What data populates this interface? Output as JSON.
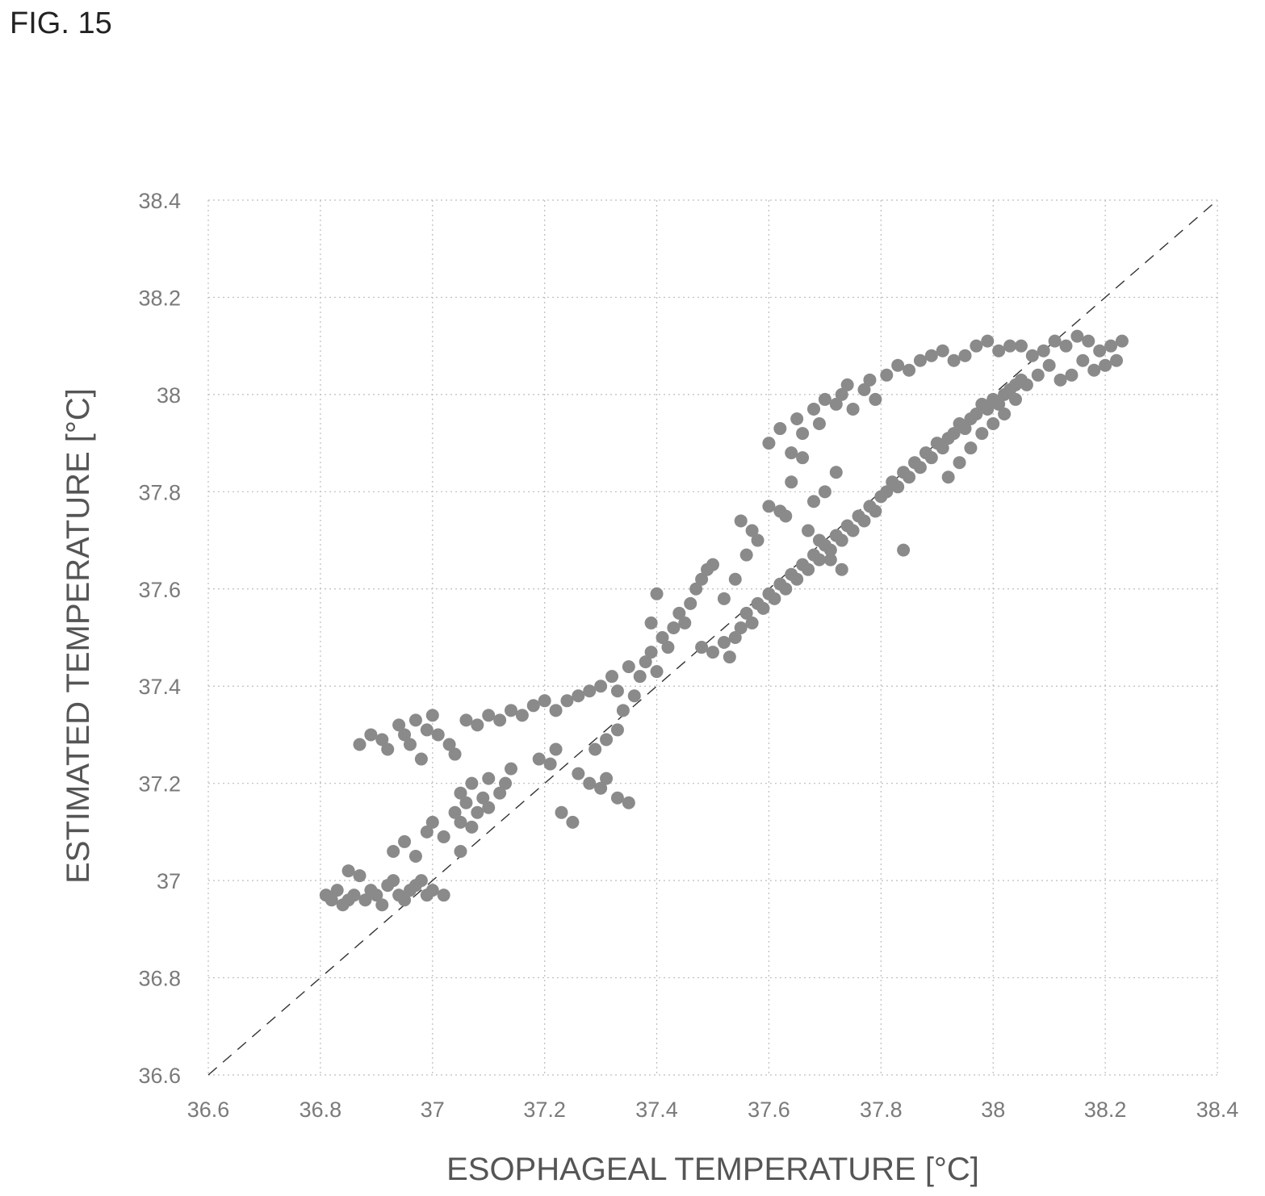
{
  "figure_label": "FIG. 15",
  "chart_data": {
    "type": "scatter",
    "title": "",
    "xlabel": "ESOPHAGEAL TEMPERATURE [°C]",
    "ylabel": "ESTIMATED TEMPERATURE [°C]",
    "xlim": [
      36.6,
      38.4
    ],
    "ylim": [
      36.6,
      38.4
    ],
    "x_ticks": [
      "36.6",
      "36.8",
      "37",
      "37.2",
      "37.4",
      "37.6",
      "37.8",
      "38",
      "38.2",
      "38.4"
    ],
    "y_ticks": [
      "36.6",
      "36.8",
      "37",
      "37.2",
      "37.4",
      "37.6",
      "37.8",
      "38",
      "38.2",
      "38.4"
    ],
    "grid": true,
    "reference_line": {
      "style": "dashed",
      "from": [
        36.6,
        36.6
      ],
      "to": [
        38.4,
        38.4
      ]
    },
    "series": [
      {
        "marker": "circle",
        "color": "#8a8a8a",
        "points": [
          [
            36.81,
            36.97
          ],
          [
            36.82,
            36.96
          ],
          [
            36.83,
            36.98
          ],
          [
            36.84,
            36.95
          ],
          [
            36.85,
            36.96
          ],
          [
            36.86,
            36.97
          ],
          [
            36.85,
            37.02
          ],
          [
            36.87,
            37.01
          ],
          [
            36.88,
            36.96
          ],
          [
            36.89,
            36.98
          ],
          [
            36.9,
            36.97
          ],
          [
            36.91,
            36.95
          ],
          [
            36.92,
            36.99
          ],
          [
            36.93,
            37.0
          ],
          [
            36.94,
            36.97
          ],
          [
            36.95,
            36.96
          ],
          [
            36.96,
            36.98
          ],
          [
            36.97,
            36.99
          ],
          [
            36.98,
            37.0
          ],
          [
            36.99,
            36.97
          ],
          [
            37.0,
            36.98
          ],
          [
            37.02,
            36.97
          ],
          [
            36.93,
            37.06
          ],
          [
            36.95,
            37.08
          ],
          [
            36.97,
            37.05
          ],
          [
            36.99,
            37.1
          ],
          [
            37.0,
            37.12
          ],
          [
            37.02,
            37.09
          ],
          [
            37.04,
            37.14
          ],
          [
            37.05,
            37.12
          ],
          [
            37.06,
            37.16
          ],
          [
            37.07,
            37.11
          ],
          [
            37.05,
            37.18
          ],
          [
            37.07,
            37.2
          ],
          [
            37.09,
            37.17
          ],
          [
            37.1,
            37.21
          ],
          [
            37.12,
            37.18
          ],
          [
            37.13,
            37.2
          ],
          [
            37.14,
            37.23
          ],
          [
            37.1,
            37.15
          ],
          [
            37.08,
            37.14
          ],
          [
            37.05,
            37.06
          ],
          [
            36.87,
            37.28
          ],
          [
            36.89,
            37.3
          ],
          [
            36.91,
            37.29
          ],
          [
            36.92,
            37.27
          ],
          [
            36.94,
            37.32
          ],
          [
            36.95,
            37.3
          ],
          [
            36.96,
            37.28
          ],
          [
            36.98,
            37.25
          ],
          [
            36.97,
            37.33
          ],
          [
            36.99,
            37.31
          ],
          [
            37.0,
            37.34
          ],
          [
            37.01,
            37.3
          ],
          [
            37.03,
            37.28
          ],
          [
            37.04,
            37.26
          ],
          [
            37.06,
            37.33
          ],
          [
            37.08,
            37.32
          ],
          [
            37.1,
            37.34
          ],
          [
            37.12,
            37.33
          ],
          [
            37.14,
            37.35
          ],
          [
            37.16,
            37.34
          ],
          [
            37.18,
            37.36
          ],
          [
            37.2,
            37.37
          ],
          [
            37.22,
            37.35
          ],
          [
            37.24,
            37.37
          ],
          [
            37.26,
            37.38
          ],
          [
            37.28,
            37.39
          ],
          [
            37.3,
            37.4
          ],
          [
            37.32,
            37.42
          ],
          [
            37.33,
            37.39
          ],
          [
            37.35,
            37.44
          ],
          [
            37.19,
            37.25
          ],
          [
            37.21,
            37.24
          ],
          [
            37.22,
            37.27
          ],
          [
            37.26,
            37.22
          ],
          [
            37.28,
            37.2
          ],
          [
            37.3,
            37.19
          ],
          [
            37.31,
            37.21
          ],
          [
            37.33,
            37.17
          ],
          [
            37.35,
            37.16
          ],
          [
            37.23,
            37.14
          ],
          [
            37.25,
            37.12
          ],
          [
            37.29,
            37.27
          ],
          [
            37.31,
            37.29
          ],
          [
            37.33,
            37.31
          ],
          [
            37.34,
            37.35
          ],
          [
            37.36,
            37.38
          ],
          [
            37.37,
            37.42
          ],
          [
            37.38,
            37.45
          ],
          [
            37.39,
            37.47
          ],
          [
            37.4,
            37.43
          ],
          [
            37.41,
            37.5
          ],
          [
            37.42,
            37.48
          ],
          [
            37.43,
            37.52
          ],
          [
            37.44,
            37.55
          ],
          [
            37.45,
            37.53
          ],
          [
            37.46,
            37.57
          ],
          [
            37.47,
            37.6
          ],
          [
            37.48,
            37.62
          ],
          [
            37.49,
            37.64
          ],
          [
            37.4,
            37.59
          ],
          [
            37.39,
            37.53
          ],
          [
            37.5,
            37.65
          ],
          [
            37.48,
            37.48
          ],
          [
            37.5,
            37.47
          ],
          [
            37.52,
            37.49
          ],
          [
            37.54,
            37.5
          ],
          [
            37.53,
            37.46
          ],
          [
            37.55,
            37.52
          ],
          [
            37.56,
            37.55
          ],
          [
            37.57,
            37.53
          ],
          [
            37.58,
            37.57
          ],
          [
            37.59,
            37.56
          ],
          [
            37.6,
            37.59
          ],
          [
            37.61,
            37.58
          ],
          [
            37.62,
            37.61
          ],
          [
            37.63,
            37.6
          ],
          [
            37.64,
            37.63
          ],
          [
            37.65,
            37.62
          ],
          [
            37.66,
            37.65
          ],
          [
            37.67,
            37.64
          ],
          [
            37.68,
            37.67
          ],
          [
            37.69,
            37.66
          ],
          [
            37.7,
            37.69
          ],
          [
            37.71,
            37.68
          ],
          [
            37.72,
            37.71
          ],
          [
            37.73,
            37.7
          ],
          [
            37.74,
            37.73
          ],
          [
            37.75,
            37.72
          ],
          [
            37.76,
            37.75
          ],
          [
            37.77,
            37.74
          ],
          [
            37.78,
            37.77
          ],
          [
            37.79,
            37.76
          ],
          [
            37.8,
            37.79
          ],
          [
            37.81,
            37.8
          ],
          [
            37.82,
            37.82
          ],
          [
            37.83,
            37.81
          ],
          [
            37.84,
            37.84
          ],
          [
            37.85,
            37.83
          ],
          [
            37.86,
            37.86
          ],
          [
            37.87,
            37.85
          ],
          [
            37.88,
            37.88
          ],
          [
            37.89,
            37.87
          ],
          [
            37.9,
            37.9
          ],
          [
            37.91,
            37.89
          ],
          [
            37.92,
            37.91
          ],
          [
            37.93,
            37.92
          ],
          [
            37.94,
            37.94
          ],
          [
            37.95,
            37.93
          ],
          [
            37.96,
            37.95
          ],
          [
            37.97,
            37.96
          ],
          [
            37.98,
            37.98
          ],
          [
            37.99,
            37.97
          ],
          [
            38.0,
            37.99
          ],
          [
            38.01,
            37.98
          ],
          [
            38.02,
            38.0
          ],
          [
            38.03,
            38.01
          ],
          [
            38.04,
            38.02
          ],
          [
            38.05,
            38.03
          ],
          [
            37.6,
            37.9
          ],
          [
            37.62,
            37.93
          ],
          [
            37.64,
            37.88
          ],
          [
            37.65,
            37.95
          ],
          [
            37.66,
            37.92
          ],
          [
            37.68,
            37.97
          ],
          [
            37.69,
            37.94
          ],
          [
            37.7,
            37.99
          ],
          [
            37.72,
            37.98
          ],
          [
            37.73,
            38.0
          ],
          [
            37.74,
            38.02
          ],
          [
            37.75,
            37.97
          ],
          [
            37.77,
            38.01
          ],
          [
            37.78,
            38.03
          ],
          [
            37.79,
            37.99
          ],
          [
            37.81,
            38.04
          ],
          [
            37.83,
            38.06
          ],
          [
            37.85,
            38.05
          ],
          [
            37.87,
            38.07
          ],
          [
            37.89,
            38.08
          ],
          [
            37.91,
            38.09
          ],
          [
            37.93,
            38.07
          ],
          [
            37.95,
            38.08
          ],
          [
            37.97,
            38.1
          ],
          [
            37.99,
            38.11
          ],
          [
            38.01,
            38.09
          ],
          [
            38.03,
            38.1
          ],
          [
            38.05,
            38.1
          ],
          [
            38.07,
            38.08
          ],
          [
            38.09,
            38.09
          ],
          [
            38.11,
            38.11
          ],
          [
            38.13,
            38.1
          ],
          [
            38.15,
            38.12
          ],
          [
            38.17,
            38.11
          ],
          [
            38.19,
            38.09
          ],
          [
            38.21,
            38.1
          ],
          [
            38.23,
            38.11
          ],
          [
            38.22,
            38.07
          ],
          [
            38.2,
            38.06
          ],
          [
            38.18,
            38.05
          ],
          [
            38.16,
            38.07
          ],
          [
            38.14,
            38.04
          ],
          [
            38.12,
            38.03
          ],
          [
            38.1,
            38.06
          ],
          [
            38.08,
            38.04
          ],
          [
            38.06,
            38.02
          ],
          [
            38.04,
            37.99
          ],
          [
            38.02,
            37.96
          ],
          [
            38.0,
            37.94
          ],
          [
            37.98,
            37.92
          ],
          [
            37.96,
            37.89
          ],
          [
            37.94,
            37.86
          ],
          [
            37.92,
            37.83
          ],
          [
            37.84,
            37.68
          ],
          [
            37.55,
            37.74
          ],
          [
            37.57,
            37.72
          ],
          [
            37.6,
            37.77
          ],
          [
            37.62,
            37.76
          ],
          [
            37.58,
            37.7
          ],
          [
            37.56,
            37.67
          ],
          [
            37.52,
            37.58
          ],
          [
            37.54,
            37.62
          ],
          [
            37.68,
            37.78
          ],
          [
            37.7,
            37.8
          ],
          [
            37.72,
            37.84
          ],
          [
            37.66,
            37.87
          ],
          [
            37.64,
            37.82
          ],
          [
            37.63,
            37.75
          ],
          [
            37.67,
            37.72
          ],
          [
            37.69,
            37.7
          ],
          [
            37.71,
            37.66
          ],
          [
            37.73,
            37.64
          ]
        ]
      }
    ]
  }
}
